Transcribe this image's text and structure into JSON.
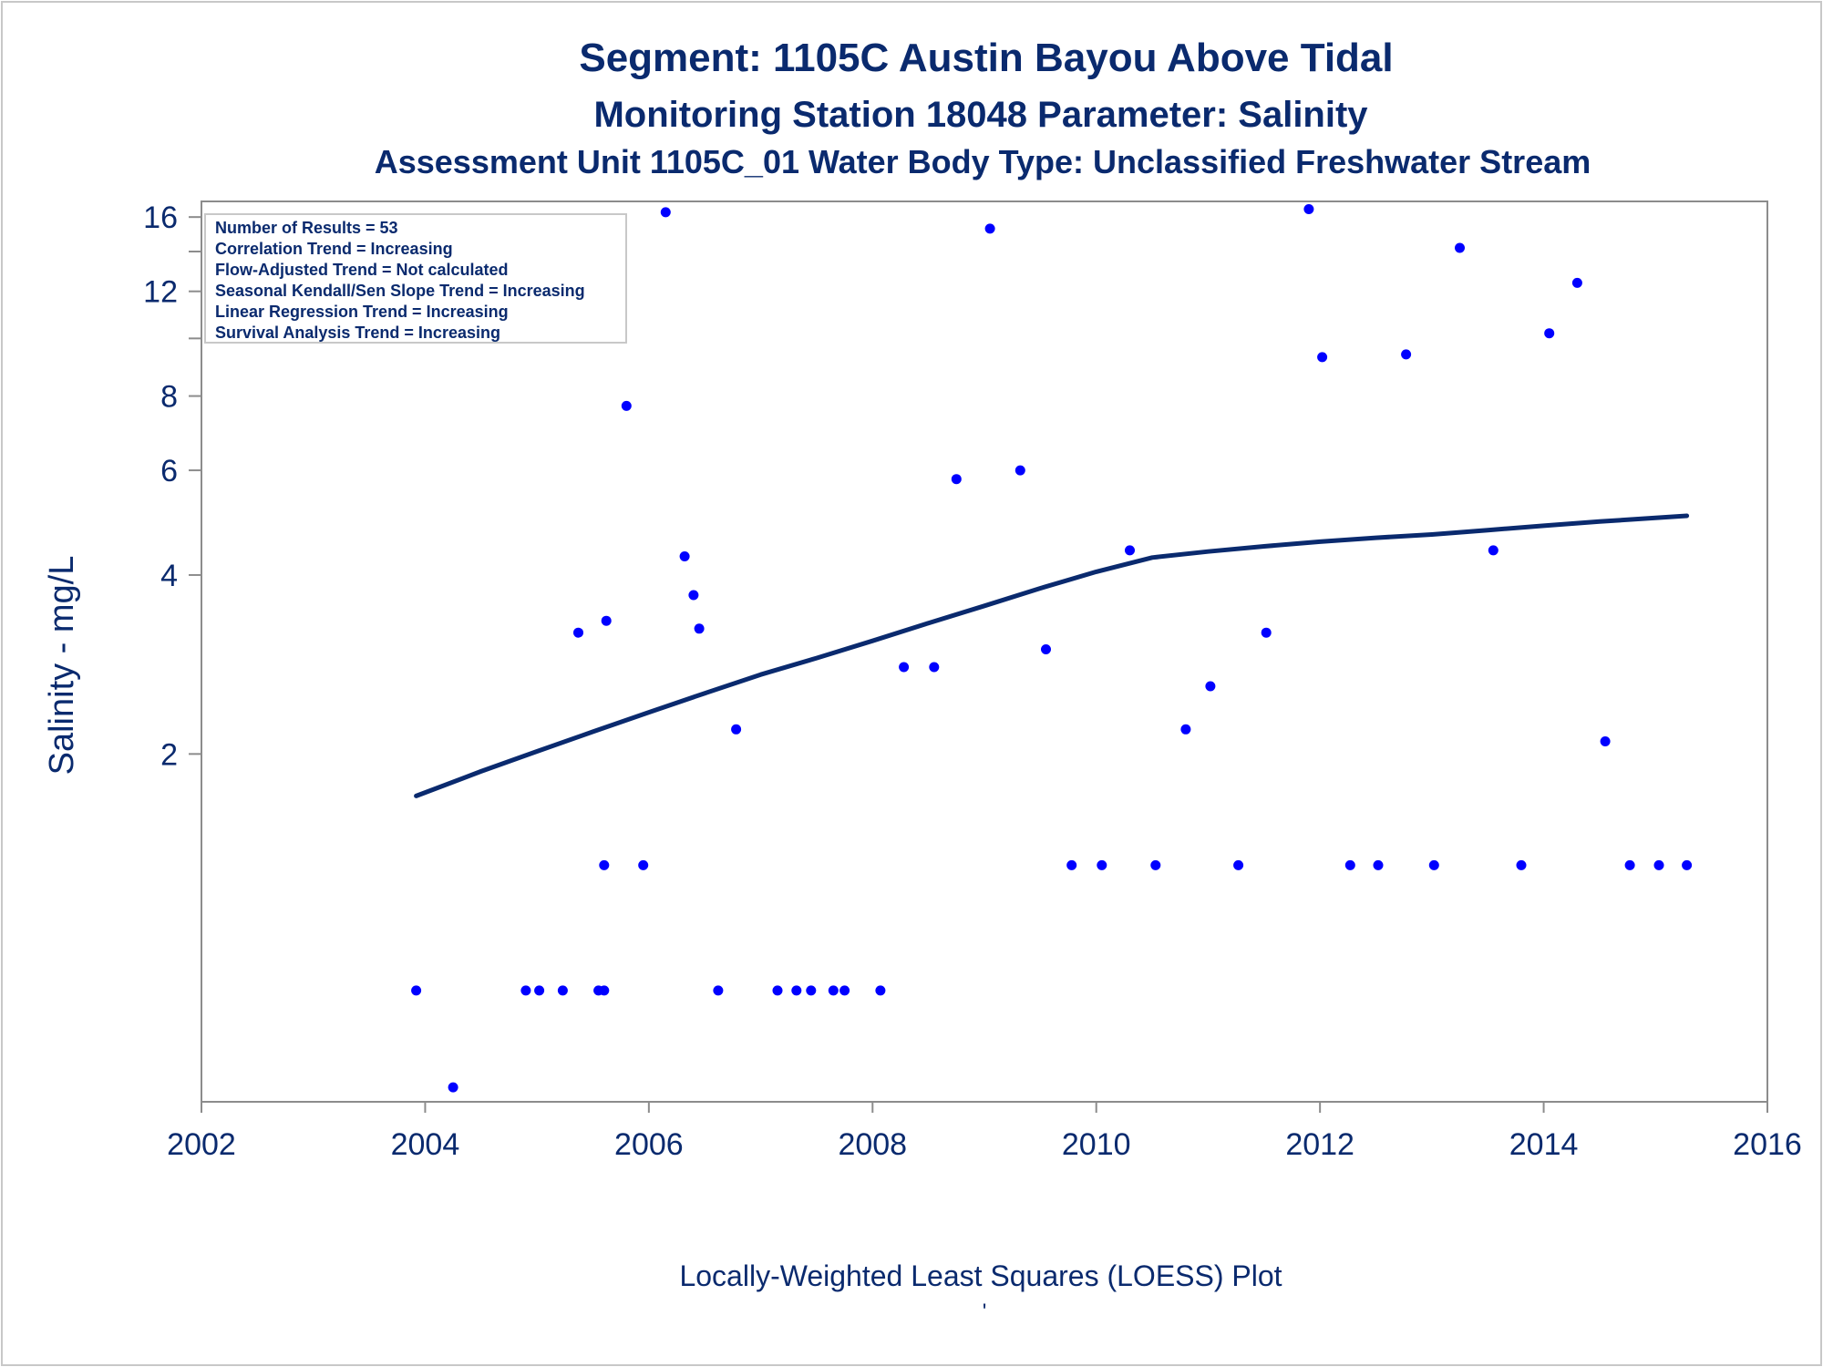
{
  "titles": {
    "line1": "Segment: 1105C  Austin Bayou Above Tidal",
    "line2": "Monitoring Station 18048 Parameter: Salinity",
    "line3": "Assessment Unit 1105C_01   Water Body Type: Unclassified Freshwater Stream"
  },
  "stats_box": {
    "lines": [
      "Number of Results = 53",
      "Correlation Trend = Increasing",
      "Flow-Adjusted Trend = Not calculated",
      "Seasonal Kendall/Sen Slope Trend = Increasing",
      "Linear Regression Trend = Increasing",
      "Survival Analysis Trend = Increasing"
    ]
  },
  "footer": {
    "caption": "Locally-Weighted Least Squares (LOESS) Plot",
    "mark": "'"
  },
  "colors": {
    "text": "#0a2a6e",
    "points": "#0000ff",
    "loess": "#0a2a6e",
    "axis": "#8c8c8c"
  },
  "chart_data": {
    "type": "scatter",
    "title": "Segment: 1105C  Austin Bayou Above Tidal",
    "xlabel": "",
    "ylabel": "Salinity - mg/L",
    "y_scale": "log",
    "xlim": [
      2002,
      2016
    ],
    "ylim": [
      0.52,
      17
    ],
    "x_ticks": [
      "2002",
      "2004",
      "2006",
      "2008",
      "2010",
      "2012",
      "2014",
      "2016"
    ],
    "y_ticks": [
      "2",
      "4",
      "6",
      "8",
      "12",
      "16"
    ],
    "y_tick_values": [
      2,
      4,
      6,
      8,
      12,
      16
    ],
    "y_minor_ticks": [
      10,
      14
    ],
    "grid": false,
    "legend": "none",
    "series": [
      {
        "x": [
          2003.92,
          2004.25,
          2004.9,
          2005.02,
          2005.23,
          2005.37,
          2005.55,
          2005.6,
          2005.6,
          2005.62,
          2005.8,
          2005.95,
          2006.15,
          2006.32,
          2006.4,
          2006.45,
          2006.62,
          2006.78,
          2007.15,
          2007.32,
          2007.45,
          2007.65,
          2007.75,
          2008.07,
          2008.28,
          2008.55,
          2008.75,
          2009.05,
          2009.32,
          2009.55,
          2009.78,
          2010.05,
          2010.3,
          2010.53,
          2010.8,
          2011.02,
          2011.27,
          2011.52,
          2011.9,
          2012.02,
          2012.27,
          2012.52,
          2012.77,
          2013.02,
          2013.25,
          2013.55,
          2013.8,
          2014.05,
          2014.3,
          2014.55,
          2014.77,
          2015.03,
          2015.28
        ],
        "y": [
          0.8,
          0.55,
          0.8,
          0.8,
          0.8,
          3.2,
          0.8,
          0.8,
          1.3,
          3.35,
          7.7,
          1.3,
          16.3,
          4.3,
          3.7,
          3.25,
          0.8,
          2.2,
          0.8,
          0.8,
          0.8,
          0.8,
          0.8,
          0.8,
          2.8,
          2.8,
          5.8,
          15.3,
          6.0,
          3.0,
          1.3,
          1.3,
          4.4,
          1.3,
          2.2,
          2.6,
          1.3,
          3.2,
          16.5,
          9.3,
          1.3,
          1.3,
          9.4,
          1.3,
          14.2,
          4.4,
          1.3,
          10.2,
          12.4,
          2.1,
          1.3,
          1.3,
          1.3
        ]
      }
    ],
    "loess_curve": {
      "x": [
        2003.92,
        2004.5,
        2005.0,
        2005.5,
        2006.0,
        2006.5,
        2007.0,
        2007.5,
        2008.0,
        2008.5,
        2009.0,
        2009.5,
        2010.0,
        2010.5,
        2011.0,
        2011.5,
        2012.0,
        2012.5,
        2013.0,
        2013.5,
        2014.0,
        2014.5,
        2015.28
      ],
      "y": [
        1.7,
        1.87,
        2.02,
        2.18,
        2.35,
        2.53,
        2.72,
        2.9,
        3.1,
        3.32,
        3.55,
        3.8,
        4.05,
        4.28,
        4.38,
        4.47,
        4.55,
        4.62,
        4.68,
        4.76,
        4.84,
        4.92,
        5.03
      ]
    }
  }
}
